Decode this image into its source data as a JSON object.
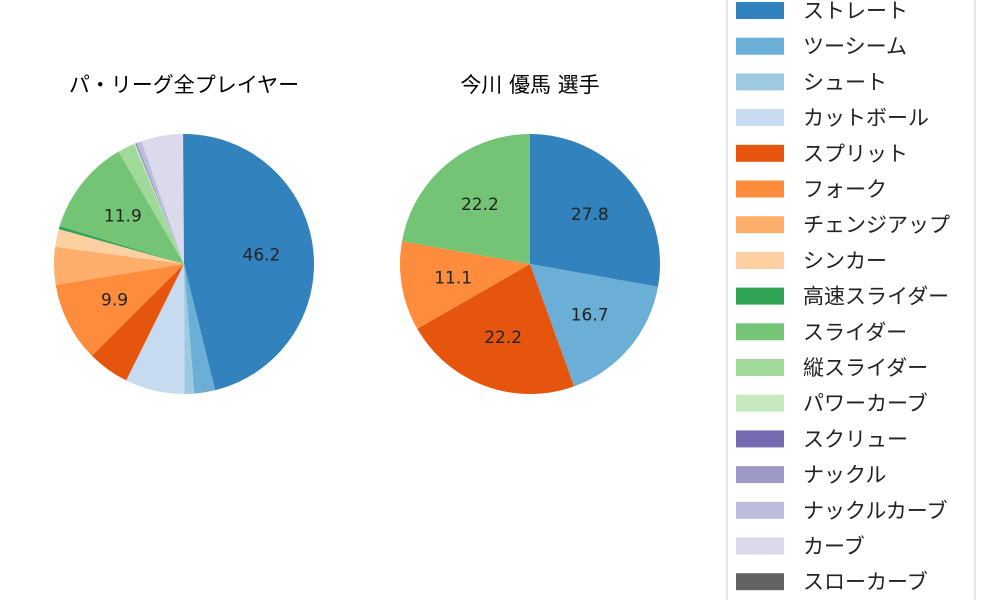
{
  "chart_data": [
    {
      "type": "pie",
      "title": "パ・リーグ全プレイヤー",
      "slices": [
        {
          "name": "ストレート",
          "value": 46.2,
          "color": "#3182bd",
          "label": "46.2"
        },
        {
          "name": "ツーシーム",
          "value": 2.6,
          "color": "#6baed6",
          "label": ""
        },
        {
          "name": "シュート",
          "value": 1.2,
          "color": "#9ecae1",
          "label": ""
        },
        {
          "name": "カットボール",
          "value": 7.4,
          "color": "#c6dbef",
          "label": ""
        },
        {
          "name": "スプリット",
          "value": 5.2,
          "color": "#e6550d",
          "label": ""
        },
        {
          "name": "フォーク",
          "value": 9.9,
          "color": "#fd8d3c",
          "label": "9.9"
        },
        {
          "name": "チェンジアップ",
          "value": 4.7,
          "color": "#fdae6b",
          "label": ""
        },
        {
          "name": "シンカー",
          "value": 2.2,
          "color": "#fdd0a2",
          "label": ""
        },
        {
          "name": "高速スライダー",
          "value": 0.4,
          "color": "#31a354",
          "label": ""
        },
        {
          "name": "スライダー",
          "value": 11.9,
          "color": "#74c476",
          "label": "11.9"
        },
        {
          "name": "縦スライダー",
          "value": 2.1,
          "color": "#a1d99b",
          "label": ""
        },
        {
          "name": "パワーカーブ",
          "value": 0.2,
          "color": "#c7e9c0",
          "label": ""
        },
        {
          "name": "スクリュー",
          "value": 0.1,
          "color": "#756bb1",
          "label": ""
        },
        {
          "name": "ナックル",
          "value": 0.1,
          "color": "#9e9ac8",
          "label": ""
        },
        {
          "name": "ナックルカーブ",
          "value": 0.6,
          "color": "#bcbddc",
          "label": ""
        },
        {
          "name": "カーブ",
          "value": 5.2,
          "color": "#dadaeb",
          "label": ""
        },
        {
          "name": "スローカーブ",
          "value": 0.1,
          "color": "#636363",
          "label": ""
        }
      ]
    },
    {
      "type": "pie",
      "title": "今川 優馬  選手",
      "slices": [
        {
          "name": "ストレート",
          "value": 27.8,
          "color": "#3182bd",
          "label": "27.8"
        },
        {
          "name": "ツーシーム",
          "value": 16.7,
          "color": "#6baed6",
          "label": "16.7"
        },
        {
          "name": "スプリット",
          "value": 22.2,
          "color": "#e6550d",
          "label": "22.2"
        },
        {
          "name": "フォーク",
          "value": 11.1,
          "color": "#fd8d3c",
          "label": "11.1"
        },
        {
          "name": "スライダー",
          "value": 22.2,
          "color": "#74c476",
          "label": "22.2"
        }
      ]
    }
  ],
  "legend": {
    "placement": "right",
    "items": [
      {
        "name": "ストレート",
        "color": "#3182bd"
      },
      {
        "name": "ツーシーム",
        "color": "#6baed6"
      },
      {
        "name": "シュート",
        "color": "#9ecae1"
      },
      {
        "name": "カットボール",
        "color": "#c6dbef"
      },
      {
        "name": "スプリット",
        "color": "#e6550d"
      },
      {
        "name": "フォーク",
        "color": "#fd8d3c"
      },
      {
        "name": "チェンジアップ",
        "color": "#fdae6b"
      },
      {
        "name": "シンカー",
        "color": "#fdd0a2"
      },
      {
        "name": "高速スライダー",
        "color": "#31a354"
      },
      {
        "name": "スライダー",
        "color": "#74c476"
      },
      {
        "name": "縦スライダー",
        "color": "#a1d99b"
      },
      {
        "name": "パワーカーブ",
        "color": "#c7e9c0"
      },
      {
        "name": "スクリュー",
        "color": "#756bb1"
      },
      {
        "name": "ナックル",
        "color": "#9e9ac8"
      },
      {
        "name": "ナックルカーブ",
        "color": "#bcbddc"
      },
      {
        "name": "カーブ",
        "color": "#dadaeb"
      },
      {
        "name": "スローカーブ",
        "color": "#636363"
      }
    ]
  }
}
